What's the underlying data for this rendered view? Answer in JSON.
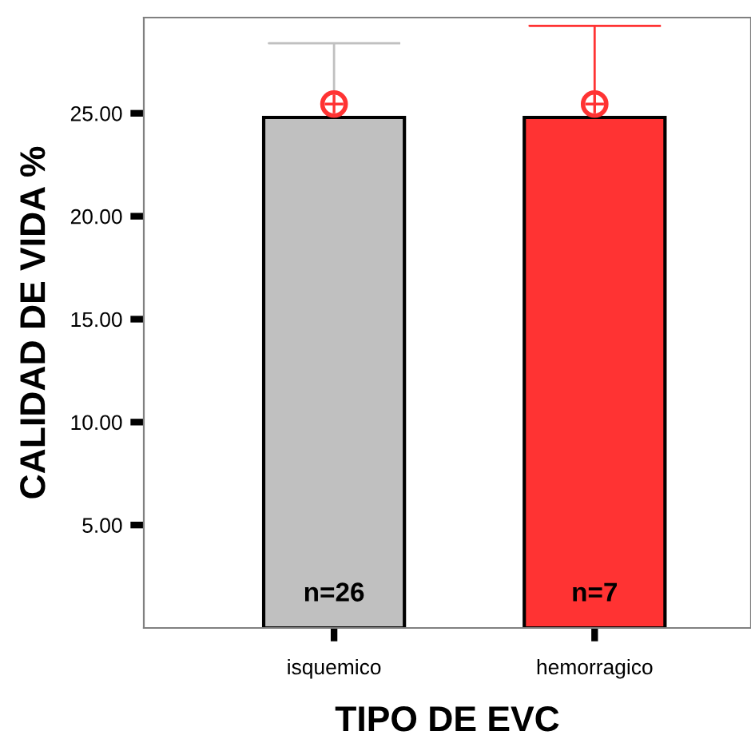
{
  "chart_data": {
    "type": "bar",
    "xlabel": "TIPO DE EVC",
    "ylabel": "CALIDAD DE VIDA %",
    "categories": [
      "isquemico",
      "hemorragico"
    ],
    "series": [
      {
        "colors": [
          "#c0c0c0",
          "#ff3333"
        ],
        "values": [
          24.8,
          24.8
        ]
      },
      {
        "type": "scatter",
        "x": [
          "isquemico",
          "hemorragico"
        ],
        "color": "#ff3333",
        "values": [
          25.45,
          25.45
        ],
        "errors": [
          [
            25.45,
            28.4
          ],
          [
            25.45,
            29.25
          ]
        ],
        "marker": "circle"
      }
    ],
    "ylim": [
      0,
      29.65
    ],
    "yticks": [
      {
        "value": 5,
        "label": "5.00"
      },
      {
        "value": 10,
        "label": "10.00"
      },
      {
        "value": 15,
        "label": "15.00"
      },
      {
        "value": 20,
        "label": "20.00"
      },
      {
        "value": 25,
        "label": "25.00"
      }
    ],
    "annotations": [
      "n=26",
      "n=7"
    ],
    "grid": false,
    "legend": false
  }
}
